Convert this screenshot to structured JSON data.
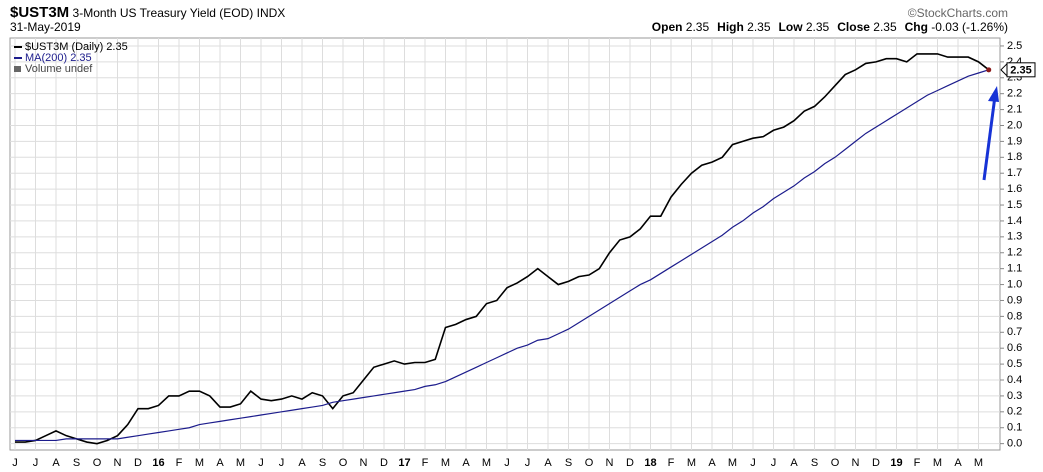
{
  "header": {
    "symbol": "$UST3M",
    "name": "3-Month US Treasury Yield (EOD)",
    "exchange": "INDX",
    "source": "©StockCharts.com",
    "date": "31-May-2019",
    "quote": [
      {
        "label": "Open",
        "value": "2.35"
      },
      {
        "label": "High",
        "value": "2.35"
      },
      {
        "label": "Low",
        "value": "2.35"
      },
      {
        "label": "Close",
        "value": "2.35"
      },
      {
        "label": "Chg",
        "value": "-0.03 (-1.26%)"
      }
    ]
  },
  "chart_data": {
    "type": "line",
    "volume_legend": "Volume undef",
    "grid": true,
    "categories": [
      "J",
      null,
      "J",
      null,
      "A",
      null,
      "S",
      null,
      "O",
      null,
      "N",
      null,
      "D",
      null,
      "16",
      null,
      "F",
      null,
      "M",
      null,
      "A",
      null,
      "M",
      null,
      "J",
      null,
      "J",
      null,
      "A",
      null,
      "S",
      null,
      "O",
      null,
      "N",
      null,
      "D",
      null,
      "17",
      null,
      "F",
      null,
      "M",
      null,
      "A",
      null,
      "M",
      null,
      "J",
      null,
      "J",
      null,
      "A",
      null,
      "S",
      null,
      "O",
      null,
      "N",
      null,
      "D",
      null,
      "18",
      null,
      "F",
      null,
      "M",
      null,
      "A",
      null,
      "M",
      null,
      "J",
      null,
      "J",
      null,
      "A",
      null,
      "S",
      null,
      "O",
      null,
      "N",
      null,
      "D",
      null,
      "19",
      null,
      "F",
      null,
      "M",
      null,
      "A",
      null,
      "M",
      null
    ],
    "series": [
      {
        "name": "$UST3M (Daily) 2.35",
        "color": "#000000",
        "values": [
          0.01,
          0.01,
          0.02,
          0.05,
          0.08,
          0.05,
          0.03,
          0.01,
          0.0,
          0.02,
          0.05,
          0.12,
          0.22,
          0.22,
          0.24,
          0.3,
          0.3,
          0.33,
          0.33,
          0.3,
          0.23,
          0.23,
          0.25,
          0.33,
          0.28,
          0.27,
          0.28,
          0.3,
          0.28,
          0.32,
          0.3,
          0.22,
          0.3,
          0.32,
          0.4,
          0.48,
          0.5,
          0.52,
          0.5,
          0.51,
          0.51,
          0.53,
          0.73,
          0.75,
          0.78,
          0.8,
          0.88,
          0.9,
          0.98,
          1.01,
          1.05,
          1.1,
          1.05,
          1.0,
          1.02,
          1.05,
          1.06,
          1.1,
          1.2,
          1.28,
          1.3,
          1.35,
          1.43,
          1.43,
          1.55,
          1.63,
          1.7,
          1.75,
          1.77,
          1.8,
          1.88,
          1.9,
          1.92,
          1.93,
          1.97,
          1.99,
          2.03,
          2.09,
          2.12,
          2.18,
          2.25,
          2.32,
          2.35,
          2.39,
          2.4,
          2.42,
          2.42,
          2.4,
          2.45,
          2.45,
          2.45,
          2.43,
          2.43,
          2.43,
          2.4,
          2.35
        ]
      },
      {
        "name": "MA(200) 2.35",
        "color": "#1c1c8c",
        "values": [
          0.02,
          0.02,
          0.02,
          0.02,
          0.02,
          0.03,
          0.03,
          0.03,
          0.03,
          0.03,
          0.03,
          0.04,
          0.05,
          0.06,
          0.07,
          0.08,
          0.09,
          0.1,
          0.12,
          0.13,
          0.14,
          0.15,
          0.16,
          0.17,
          0.18,
          0.19,
          0.2,
          0.21,
          0.22,
          0.23,
          0.24,
          0.26,
          0.27,
          0.28,
          0.29,
          0.3,
          0.31,
          0.32,
          0.33,
          0.34,
          0.36,
          0.37,
          0.39,
          0.42,
          0.45,
          0.48,
          0.51,
          0.54,
          0.57,
          0.6,
          0.62,
          0.65,
          0.66,
          0.69,
          0.72,
          0.76,
          0.8,
          0.84,
          0.88,
          0.92,
          0.96,
          1.0,
          1.03,
          1.07,
          1.11,
          1.15,
          1.19,
          1.23,
          1.27,
          1.31,
          1.36,
          1.4,
          1.45,
          1.49,
          1.54,
          1.58,
          1.62,
          1.67,
          1.71,
          1.76,
          1.8,
          1.85,
          1.9,
          1.95,
          1.99,
          2.03,
          2.07,
          2.11,
          2.15,
          2.19,
          2.22,
          2.25,
          2.28,
          2.31,
          2.33,
          2.35
        ]
      }
    ],
    "ylim": [
      -0.04,
      2.55
    ],
    "yticks": [
      {
        "value": 0,
        "label": "0.0"
      },
      0.1,
      0.2,
      0.3,
      0.4,
      0.5,
      0.6,
      0.7,
      0.8,
      0.9,
      {
        "value": 1,
        "label": "1.0"
      },
      1.1,
      1.2,
      1.3,
      1.4,
      1.5,
      1.6,
      1.7,
      1.8,
      1.9,
      {
        "value": 2,
        "label": "2.0"
      },
      2.1,
      2.2,
      2.3,
      2.4,
      2.5
    ]
  }
}
